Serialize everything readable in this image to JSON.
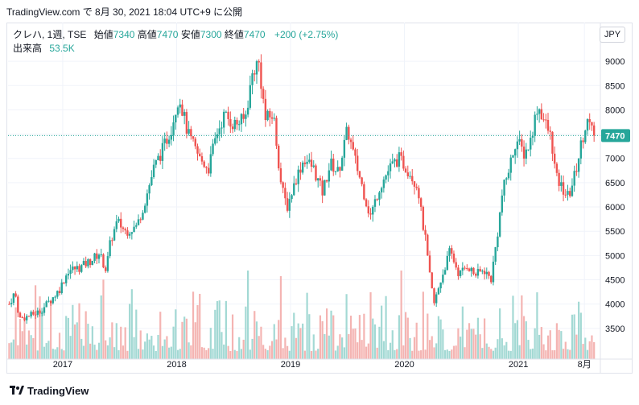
{
  "header": {
    "text": "TradingView.com で 8月 30, 2021 18:04 UTC+9 に公開"
  },
  "legend": {
    "symbol": "クレハ, 1週, TSE",
    "open_label": "始値",
    "open": "7340",
    "high_label": "高値",
    "high": "7470",
    "low_label": "安値",
    "low": "7300",
    "close_label": "終値",
    "close": "7470",
    "change": "+200 (+2.75%)",
    "volume_label": "出来高",
    "volume": "53.5K"
  },
  "currency_button": "JPY",
  "last_price_label": "7470",
  "footer": {
    "brand": "TradingView"
  },
  "colors": {
    "up": "#26a69a",
    "down": "#ef5350",
    "up_volume": "#a3d9d4",
    "down_volume": "#f4b4b2",
    "grid": "#f0f3fa"
  },
  "chart_data": {
    "type": "candlestick",
    "title": "クレハ, 1週, TSE",
    "y_ticks": [
      3500,
      4000,
      4500,
      5000,
      5500,
      6000,
      6500,
      7000,
      7500,
      8000,
      8500,
      9000
    ],
    "ylim": [
      3000,
      9300
    ],
    "x_ticks": [
      "2017",
      "2018",
      "2019",
      "2020",
      "2021",
      "8月"
    ],
    "x_tick_dates": [
      2017.0,
      2018.0,
      2019.0,
      2020.0,
      2021.0,
      2021.58
    ],
    "xlim": [
      2016.52,
      2021.72
    ],
    "last_price": 7470,
    "grid": true,
    "price_path": [
      [
        2016.53,
        4000
      ],
      [
        2016.58,
        4250
      ],
      [
        2016.62,
        3700
      ],
      [
        2016.7,
        3750
      ],
      [
        2016.8,
        3850
      ],
      [
        2016.9,
        4100
      ],
      [
        2016.97,
        4300
      ],
      [
        2017.05,
        4700
      ],
      [
        2017.15,
        4750
      ],
      [
        2017.25,
        4900
      ],
      [
        2017.32,
        5050
      ],
      [
        2017.38,
        4700
      ],
      [
        2017.42,
        5300
      ],
      [
        2017.48,
        5700
      ],
      [
        2017.55,
        5500
      ],
      [
        2017.65,
        5600
      ],
      [
        2017.72,
        6100
      ],
      [
        2017.8,
        6800
      ],
      [
        2017.88,
        7200
      ],
      [
        2017.95,
        7600
      ],
      [
        2018.02,
        8300
      ],
      [
        2018.1,
        7500
      ],
      [
        2018.2,
        7000
      ],
      [
        2018.28,
        6800
      ],
      [
        2018.35,
        7500
      ],
      [
        2018.42,
        7900
      ],
      [
        2018.5,
        7700
      ],
      [
        2018.6,
        7800
      ],
      [
        2018.67,
        8800
      ],
      [
        2018.72,
        9000
      ],
      [
        2018.78,
        7800
      ],
      [
        2018.85,
        7900
      ],
      [
        2018.92,
        6400
      ],
      [
        2018.97,
        6000
      ],
      [
        2019.05,
        6600
      ],
      [
        2019.12,
        7000
      ],
      [
        2019.2,
        6800
      ],
      [
        2019.28,
        6300
      ],
      [
        2019.35,
        6900
      ],
      [
        2019.42,
        6700
      ],
      [
        2019.5,
        7600
      ],
      [
        2019.55,
        7100
      ],
      [
        2019.62,
        6500
      ],
      [
        2019.7,
        5800
      ],
      [
        2019.78,
        6400
      ],
      [
        2019.87,
        6800
      ],
      [
        2019.95,
        7000
      ],
      [
        2020.05,
        6700
      ],
      [
        2020.12,
        6400
      ],
      [
        2020.15,
        5800
      ],
      [
        2020.18,
        5400
      ],
      [
        2020.22,
        4600
      ],
      [
        2020.26,
        4000
      ],
      [
        2020.32,
        4500
      ],
      [
        2020.4,
        5100
      ],
      [
        2020.48,
        4600
      ],
      [
        2020.55,
        4800
      ],
      [
        2020.62,
        4600
      ],
      [
        2020.7,
        4700
      ],
      [
        2020.76,
        4500
      ],
      [
        2020.82,
        5500
      ],
      [
        2020.86,
        6300
      ],
      [
        2020.92,
        6800
      ],
      [
        2020.98,
        7400
      ],
      [
        2021.05,
        7100
      ],
      [
        2021.1,
        7300
      ],
      [
        2021.17,
        8100
      ],
      [
        2021.24,
        7700
      ],
      [
        2021.29,
        7400
      ],
      [
        2021.33,
        6600
      ],
      [
        2021.38,
        6400
      ],
      [
        2021.44,
        6200
      ],
      [
        2021.5,
        6700
      ],
      [
        2021.56,
        7400
      ],
      [
        2021.6,
        7800
      ],
      [
        2021.66,
        7470
      ]
    ],
    "volume_range": [
      10,
      75
    ]
  }
}
